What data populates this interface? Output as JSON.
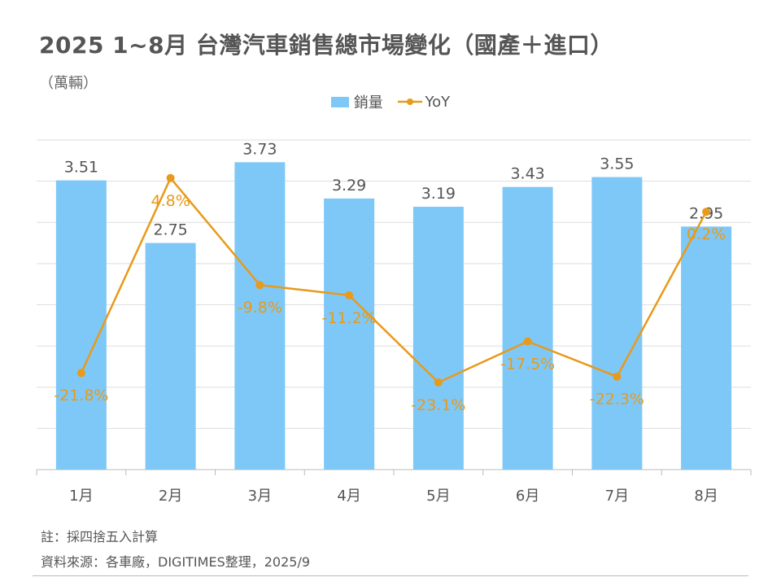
{
  "title": "2025 1~8月 台灣汽車銷售總市場變化（國產＋進口）",
  "unit_label": "（萬輛）",
  "notes": {
    "rounding": "註：採四捨五入計算",
    "source": "資料來源：各車廠，DIGITIMES整理，2025/9"
  },
  "colors": {
    "bar": "#7EC8F8",
    "line": "#E89A1A",
    "grid": "#DDDDDD",
    "axis": "#BBBBBB",
    "bar_label": "#555555",
    "tick_label": "#555555"
  },
  "chart_data": {
    "type": "bar",
    "categories": [
      "1月",
      "2月",
      "3月",
      "4月",
      "5月",
      "6月",
      "7月",
      "8月"
    ],
    "series": [
      {
        "name": "銷量",
        "type": "bar",
        "axis": "left",
        "values": [
          3.51,
          2.75,
          3.73,
          3.29,
          3.19,
          3.43,
          3.55,
          2.95
        ],
        "labels": [
          "3.51",
          "2.75",
          "3.73",
          "3.29",
          "3.19",
          "3.43",
          "3.55",
          "2.95"
        ]
      },
      {
        "name": "YoY",
        "type": "line",
        "axis": "right",
        "values": [
          -21.8,
          4.8,
          -9.8,
          -11.2,
          -23.1,
          -17.5,
          -22.3,
          0.2
        ],
        "labels": [
          "-21.8%",
          "4.8%",
          "-9.8%",
          "-11.2%",
          "-23.1%",
          "-17.5%",
          "-22.3%",
          "0.2%"
        ]
      }
    ],
    "y_left_range": [
      0,
      4.0
    ],
    "y_right_range": [
      -35,
      10
    ],
    "grid": true,
    "legend": "top-center"
  }
}
